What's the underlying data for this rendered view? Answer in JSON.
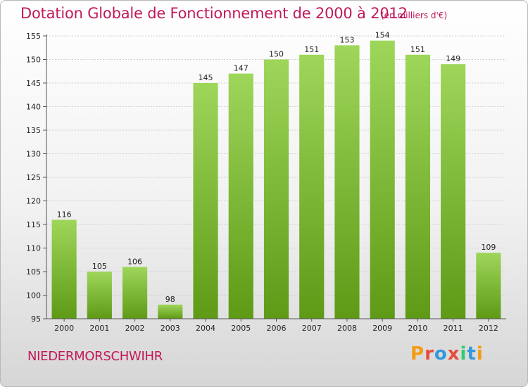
{
  "header": {
    "title": "Dotation Globale de Fonctionnement de 2000 à 2012",
    "subtitle": "(en milliers d'€)"
  },
  "footer": {
    "commune": "NIEDERMORSCHWIHR",
    "logo_text": "Proxiti",
    "logo_colors": [
      "#f39c12",
      "#e74c3c",
      "#3498db",
      "#e74c3c",
      "#2ecc71",
      "#3498db",
      "#f39c12"
    ]
  },
  "colors": {
    "bar_top": "#9ed65a",
    "bar_bottom": "#5e9a16",
    "title": "#c2185b",
    "grid": "#cfcfcf"
  },
  "chart_data": {
    "type": "bar",
    "categories": [
      "2000",
      "2001",
      "2002",
      "2003",
      "2004",
      "2005",
      "2006",
      "2007",
      "2008",
      "2009",
      "2010",
      "2011",
      "2012"
    ],
    "values": [
      116,
      105,
      106,
      98,
      145,
      147,
      150,
      151,
      153,
      154,
      151,
      149,
      109
    ],
    "title": "Dotation Globale de Fonctionnement de 2000 à 2012",
    "xlabel": "",
    "ylabel": "",
    "ylim": [
      95,
      155
    ],
    "yticks": [
      95,
      100,
      105,
      110,
      115,
      120,
      125,
      130,
      135,
      140,
      145,
      150,
      155
    ],
    "grid": "horizontal"
  }
}
